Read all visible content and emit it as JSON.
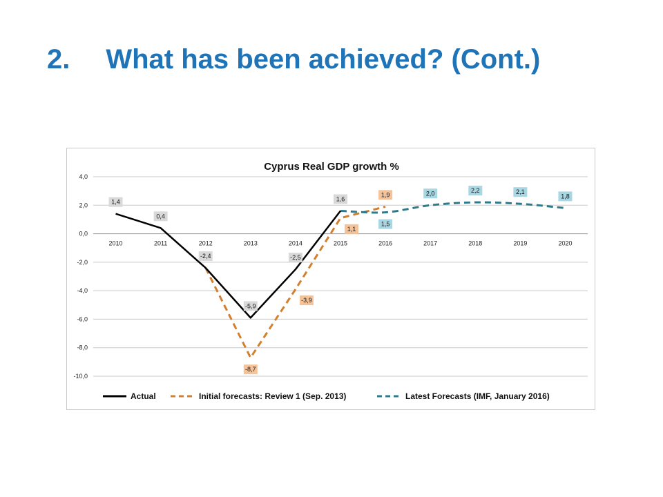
{
  "slide": {
    "number": "2.",
    "title": "What has been achieved? (Cont.)"
  },
  "colors": {
    "title": "#1f73b7",
    "actual": "#000000",
    "initial": "#d27f2e",
    "latest": "#2e7a8a",
    "grid": "#c8c8c8",
    "label_grey": "#d9d9d9",
    "label_orange": "#f4c39a",
    "label_teal": "#a8d6e2"
  },
  "chart_data": {
    "type": "line",
    "title": "Cyprus Real GDP growth %",
    "categories": [
      "2010",
      "2011",
      "2012",
      "2013",
      "2014",
      "2015",
      "2016",
      "2017",
      "2018",
      "2019",
      "2020"
    ],
    "ylim": [
      -10,
      4
    ],
    "yticks": [
      4,
      2,
      0,
      -2,
      -4,
      -6,
      -8,
      -10
    ],
    "ytick_labels": [
      "4,0",
      "2,0",
      "0,0",
      "-2,0",
      "-4,0",
      "-6,0",
      "-8,0",
      "-10,0"
    ],
    "grid": true,
    "legend_position": "bottom",
    "series": [
      {
        "name": "Actual",
        "style": "solid",
        "color": "#000000",
        "x": [
          "2010",
          "2011",
          "2012",
          "2013",
          "2014",
          "2015"
        ],
        "values": [
          1.4,
          0.4,
          -2.4,
          -5.9,
          -2.5,
          1.6
        ],
        "labels": [
          "1,4",
          "0,4",
          "-2,4",
          "-5,9",
          "-2,5",
          "1,6"
        ],
        "label_side": [
          "above",
          "above",
          "above",
          "above",
          "above",
          "above"
        ],
        "label_fill": "#d9d9d9"
      },
      {
        "name": "Initial forecasts: Review 1 (Sep. 2013)",
        "style": "dashed",
        "color": "#d27f2e",
        "x": [
          "2012",
          "2013",
          "2014",
          "2015",
          "2016"
        ],
        "values": [
          -2.4,
          -8.7,
          -3.9,
          1.1,
          1.9
        ],
        "labels": [
          "",
          "-8,7",
          "-3,9",
          "1,1",
          "1,9"
        ],
        "label_side": [
          "none",
          "below",
          "right",
          "right",
          "above"
        ],
        "label_fill": "#f4c39a"
      },
      {
        "name": "Latest Forecasts (IMF, January 2016)",
        "style": "dashed",
        "color": "#2e7a8a",
        "x": [
          "2015",
          "2016",
          "2017",
          "2018",
          "2019",
          "2020"
        ],
        "values": [
          1.6,
          1.5,
          2.0,
          2.2,
          2.1,
          1.8
        ],
        "labels": [
          "",
          "1,5",
          "2,0",
          "2,2",
          "2,1",
          "1,8"
        ],
        "label_side": [
          "none",
          "below",
          "above",
          "above",
          "above",
          "above"
        ],
        "label_fill": "#a8d6e2"
      }
    ]
  }
}
